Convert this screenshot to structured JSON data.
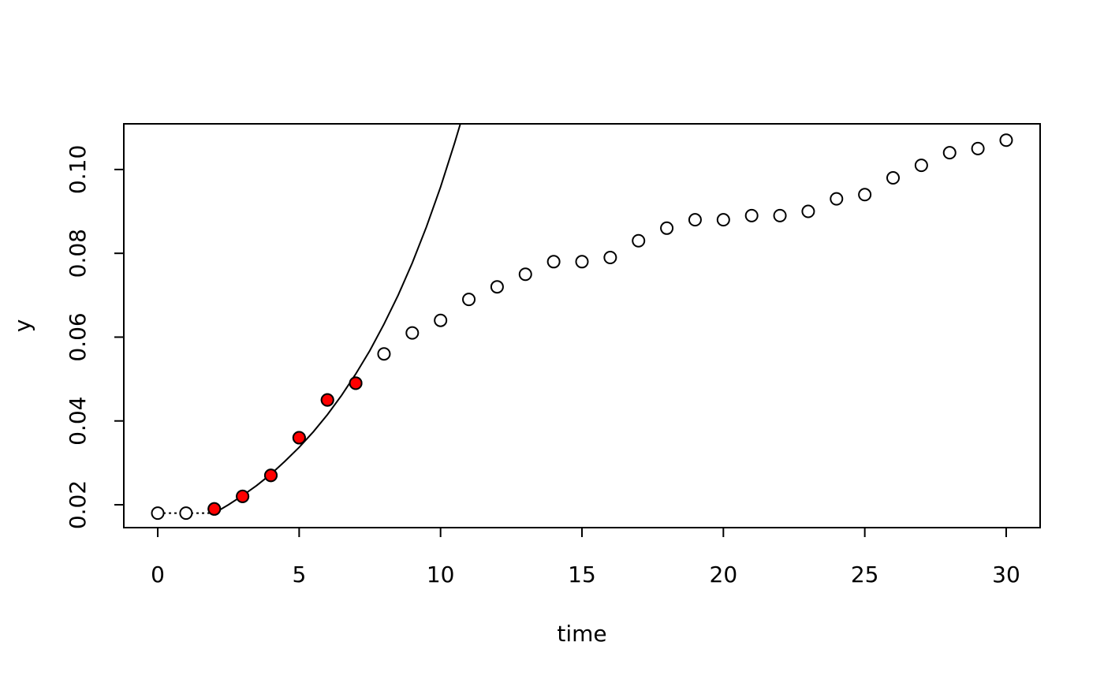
{
  "chart_data": {
    "type": "scatter",
    "x_label": "time",
    "y_label": "y",
    "xlim": [
      -1.2,
      31.2
    ],
    "ylim": [
      0.01454,
      0.1109
    ],
    "xticks": [
      0,
      5,
      10,
      15,
      20,
      25,
      30
    ],
    "yticks": [
      0.02,
      0.04,
      0.06,
      0.08,
      {
        "value": 0.1,
        "label": "0.10"
      }
    ],
    "series": [
      {
        "style": "open",
        "color": "#000000",
        "x": [
          0,
          1,
          2,
          3,
          4,
          5,
          6,
          7,
          8,
          9,
          10,
          11,
          12,
          13,
          14,
          15,
          16,
          17,
          18,
          19,
          20,
          21,
          22,
          23,
          24,
          25,
          26,
          27,
          28,
          29,
          30
        ],
        "values": [
          0.018,
          0.018,
          0.019,
          0.022,
          0.027,
          0.036,
          0.045,
          0.049,
          0.056,
          0.061,
          0.064,
          0.069,
          0.072,
          0.075,
          0.078,
          0.078,
          0.079,
          0.083,
          0.086,
          0.088,
          0.088,
          0.089,
          0.089,
          0.09,
          0.093,
          0.094,
          0.098,
          0.101,
          0.104,
          0.105,
          0.107
        ]
      },
      {
        "style": "filled",
        "color": "#ff0000",
        "x": [
          2,
          3,
          4,
          5,
          6,
          7
        ],
        "values": [
          0.019,
          0.022,
          0.027,
          0.036,
          0.045,
          0.049
        ]
      },
      {
        "style": "line",
        "color": "#000000",
        "x": [
          2,
          2.5,
          3,
          3.5,
          4,
          4.5,
          5,
          5.5,
          6,
          6.5,
          7,
          7.5,
          8,
          8.5,
          9,
          9.5,
          10,
          10.5,
          10.7
        ],
        "values": [
          0.018,
          0.02,
          0.0222,
          0.0246,
          0.0273,
          0.0304,
          0.0337,
          0.0374,
          0.0415,
          0.0461,
          0.0512,
          0.0568,
          0.0631,
          0.07,
          0.0777,
          0.0863,
          0.0958,
          0.1064,
          0.1109
        ]
      },
      {
        "style": "dotted",
        "color": "#000000",
        "x": [
          0,
          2
        ],
        "values": [
          0.018,
          0.018
        ]
      }
    ]
  }
}
